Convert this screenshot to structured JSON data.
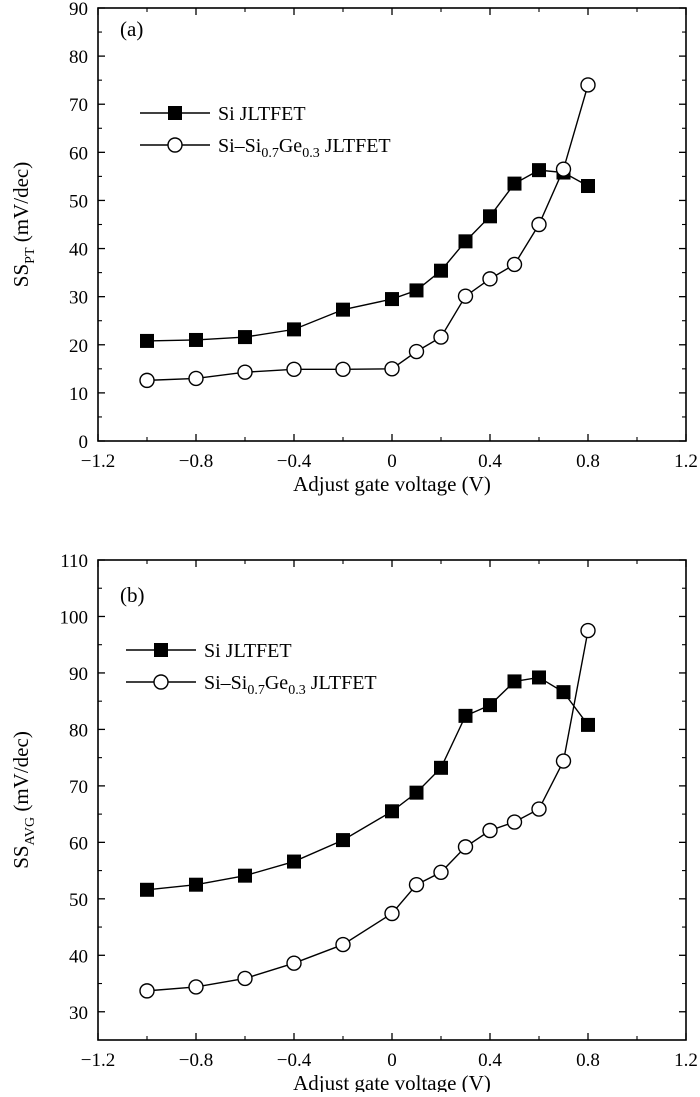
{
  "chart_data": [
    {
      "type": "line",
      "panel_label": "(a)",
      "xlabel": "Adjust gate voltage (V)",
      "ylabel_main": "SS",
      "ylabel_sub": "PT",
      "ylabel_unit": "(mV/dec)",
      "xlim": [
        -1.2,
        1.2
      ],
      "ylim": [
        0,
        90
      ],
      "xticks": [
        -1.2,
        -0.8,
        -0.4,
        0,
        0.4,
        0.8,
        1.2
      ],
      "xtick_labels": [
        "−1.2",
        "−0.8",
        "−0.4",
        "0",
        "0.4",
        "0.8",
        "1.2"
      ],
      "yticks": [
        0,
        10,
        20,
        30,
        40,
        50,
        60,
        70,
        80,
        90
      ],
      "ytick_labels": [
        "0",
        "10",
        "20",
        "30",
        "40",
        "50",
        "60",
        "70",
        "80",
        "90"
      ],
      "legend_position": "upper-left",
      "series": [
        {
          "name": "Si JLTFET",
          "legend_parts": [
            {
              "t": "Si JLTFET"
            }
          ],
          "marker": "filled-square",
          "x": [
            -1.0,
            -0.8,
            -0.6,
            -0.4,
            -0.2,
            0.0,
            0.1,
            0.2,
            0.3,
            0.4,
            0.5,
            0.6,
            0.7,
            0.8
          ],
          "y": [
            20.8,
            21.0,
            21.6,
            23.2,
            27.3,
            29.5,
            31.3,
            35.4,
            41.5,
            46.7,
            53.5,
            56.3,
            55.8,
            53.0
          ]
        },
        {
          "name": "Si–Si0.7Ge0.3 JLTFET",
          "legend_parts": [
            {
              "t": "Si–Si"
            },
            {
              "t": "0.7",
              "sub": true
            },
            {
              "t": "Ge"
            },
            {
              "t": "0.3",
              "sub": true
            },
            {
              "t": " JLTFET"
            }
          ],
          "marker": "open-circle",
          "x": [
            -1.0,
            -0.8,
            -0.6,
            -0.4,
            -0.2,
            0.0,
            0.1,
            0.2,
            0.3,
            0.4,
            0.5,
            0.6,
            0.7,
            0.8
          ],
          "y": [
            12.6,
            13.0,
            14.3,
            14.9,
            14.9,
            15.0,
            18.6,
            21.6,
            30.1,
            33.7,
            36.7,
            45.0,
            56.5,
            74.0
          ]
        }
      ]
    },
    {
      "type": "line",
      "panel_label": "(b)",
      "xlabel": "Adjust gate voltage (V)",
      "ylabel_main": "SS",
      "ylabel_sub": "AVG",
      "ylabel_unit": "(mV/dec)",
      "xlim": [
        -1.2,
        1.2
      ],
      "ylim": [
        25,
        110
      ],
      "xticks": [
        -1.2,
        -0.8,
        -0.4,
        0,
        0.4,
        0.8,
        1.2
      ],
      "xtick_labels": [
        "−1.2",
        "−0.8",
        "−0.4",
        "0",
        "0.4",
        "0.8",
        "1.2"
      ],
      "yticks": [
        30,
        40,
        50,
        60,
        70,
        80,
        90,
        100,
        110
      ],
      "ytick_labels": [
        "30",
        "40",
        "50",
        "60",
        "70",
        "80",
        "90",
        "100",
        "110"
      ],
      "legend_position": "upper-left",
      "series": [
        {
          "name": "Si JLTFET",
          "legend_parts": [
            {
              "t": "Si JLTFET"
            }
          ],
          "marker": "filled-square",
          "x": [
            -1.0,
            -0.8,
            -0.6,
            -0.4,
            -0.2,
            0.0,
            0.1,
            0.2,
            0.3,
            0.4,
            0.5,
            0.6,
            0.7,
            0.8
          ],
          "y": [
            51.6,
            52.5,
            54.1,
            56.6,
            60.4,
            65.5,
            68.8,
            73.2,
            82.4,
            84.3,
            88.5,
            89.2,
            86.6,
            80.8
          ]
        },
        {
          "name": "Si–Si0.7Ge0.3 JLTFET",
          "legend_parts": [
            {
              "t": "Si–Si"
            },
            {
              "t": "0.7",
              "sub": true
            },
            {
              "t": "Ge"
            },
            {
              "t": "0.3",
              "sub": true
            },
            {
              "t": " JLTFET"
            }
          ],
          "marker": "open-circle",
          "x": [
            -1.0,
            -0.8,
            -0.6,
            -0.4,
            -0.2,
            0.0,
            0.1,
            0.2,
            0.3,
            0.4,
            0.5,
            0.6,
            0.7,
            0.8
          ],
          "y": [
            33.7,
            34.4,
            35.9,
            38.6,
            41.9,
            47.4,
            52.5,
            54.7,
            59.2,
            62.1,
            63.6,
            65.9,
            74.4,
            97.5
          ]
        }
      ]
    }
  ]
}
